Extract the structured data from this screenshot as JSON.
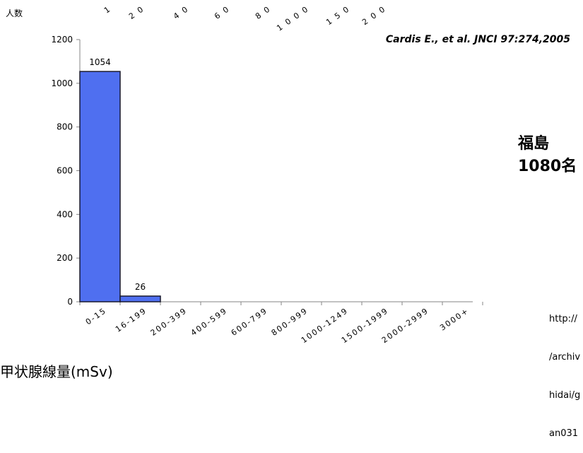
{
  "chart_data": {
    "type": "bar",
    "categories": [
      "0-15",
      "16-199",
      "200-399",
      "400-599",
      "600-799",
      "800-999",
      "1000-1249",
      "1500-1999",
      "2000-2999",
      "3000+"
    ],
    "values": [
      1054,
      26,
      0,
      0,
      0,
      0,
      0,
      0,
      0,
      0
    ],
    "data_labels": [
      "1054",
      "26",
      "",
      "",
      "",
      "",
      "",
      "",
      "",
      ""
    ],
    "top_labels": [
      "1",
      "2 0",
      "4 0",
      "6 0",
      "8 0",
      "1 0 0 0",
      "1 5 0",
      "2 0 0"
    ],
    "ylabel": "人数",
    "xlabel": "甲状腺線量(mSv)",
    "ylim": [
      0,
      1200
    ],
    "yticks": [
      0,
      200,
      400,
      600,
      800,
      1000,
      1200
    ],
    "bar_color": "#4f6ff0",
    "grid": false
  },
  "citation": "Cardis E., et al. JNCI 97:274,2005",
  "annotation": {
    "line1": "福島",
    "line2": "1080名"
  },
  "source_url": {
    "lines": [
      "http://",
      "/archiv",
      "hidai/g",
      "an031"
    ]
  }
}
